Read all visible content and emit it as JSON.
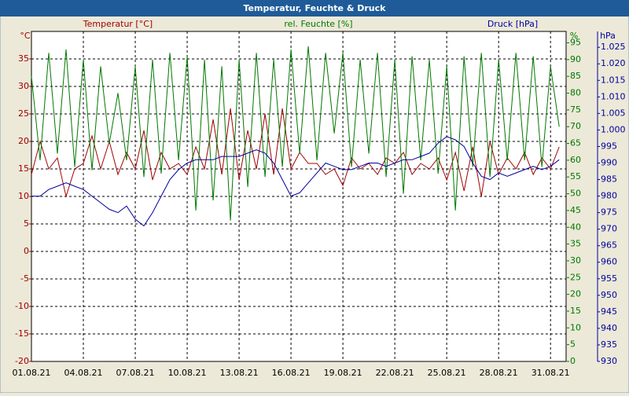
{
  "chart_data": {
    "type": "line",
    "title": "Temperatur, Feuchte & Druck",
    "ylabel": "°C",
    "y2label": "%",
    "y3label": "hPa",
    "xlim": [
      0,
      30.9
    ],
    "xticks": [
      {
        "value": 0,
        "label": "01.08.21"
      },
      {
        "value": 3,
        "label": "04.08.21"
      },
      {
        "value": 6,
        "label": "07.08.21"
      },
      {
        "value": 9,
        "label": "10.08.21"
      },
      {
        "value": 12,
        "label": "13.08.21"
      },
      {
        "value": 15,
        "label": "16.08.21"
      },
      {
        "value": 18,
        "label": "19.08.21"
      },
      {
        "value": 21,
        "label": "22.08.21"
      },
      {
        "value": 24,
        "label": "25.08.21"
      },
      {
        "value": 27,
        "label": "28.08.21"
      },
      {
        "value": 30,
        "label": "31.08.21"
      }
    ],
    "ylim": [
      -20,
      40
    ],
    "yticks": [
      -20,
      -15,
      -10,
      -5,
      0,
      5,
      10,
      15,
      20,
      25,
      30,
      35
    ],
    "y2lim": [
      0,
      98.4
    ],
    "y2ticks": [
      0,
      5,
      10,
      15,
      20,
      25,
      30,
      35,
      40,
      45,
      50,
      55,
      60,
      65,
      70,
      75,
      80,
      85,
      90,
      95
    ],
    "y3lim": [
      930,
      1029.8
    ],
    "y3ticks": [
      930,
      935,
      940,
      945,
      950,
      955,
      960,
      965,
      970,
      975,
      980,
      985,
      990,
      995,
      {
        "value": 1000,
        "label": "1.000"
      },
      {
        "value": 1005,
        "label": "1.005"
      },
      {
        "value": 1010,
        "label": "1.010"
      },
      {
        "value": 1015,
        "label": "1.015"
      },
      {
        "value": 1020,
        "label": "1.020"
      },
      {
        "value": 1025,
        "label": "1.025"
      }
    ],
    "grid": true,
    "x": [
      0,
      0.5,
      1,
      1.5,
      2,
      2.5,
      3,
      3.5,
      4,
      4.5,
      5,
      5.5,
      6,
      6.5,
      7,
      7.5,
      8,
      8.5,
      9,
      9.5,
      10,
      10.5,
      11,
      11.5,
      12,
      12.5,
      13,
      13.5,
      14,
      14.5,
      15,
      15.5,
      16,
      16.5,
      17,
      17.5,
      18,
      18.5,
      19,
      19.5,
      20,
      20.5,
      21,
      21.5,
      22,
      22.5,
      23,
      23.5,
      24,
      24.5,
      25,
      25.5,
      26,
      26.5,
      27,
      27.5,
      28,
      28.5,
      29,
      29.5,
      30,
      30.5
    ],
    "series": [
      {
        "name": "Temperatur [°C]",
        "color": "#a00000",
        "axis": "y",
        "values": [
          14,
          20,
          15,
          17,
          10,
          15,
          16,
          21,
          15,
          20,
          14,
          18,
          15,
          22,
          13,
          18,
          15,
          16,
          14,
          19,
          15,
          24,
          14,
          26,
          13,
          22,
          15,
          25,
          14,
          26,
          15,
          18,
          16,
          16,
          14,
          15,
          12,
          17,
          15,
          16,
          14,
          17,
          16,
          18,
          14,
          16,
          15,
          17,
          13,
          18,
          11,
          19,
          10,
          20,
          14,
          17,
          15,
          18,
          14,
          17,
          15,
          19
        ]
      },
      {
        "name": "rel. Feuchte [%]",
        "color": "#007800",
        "axis": "y2",
        "values": [
          85,
          60,
          92,
          62,
          93,
          58,
          90,
          57,
          88,
          65,
          80,
          60,
          88,
          55,
          90,
          56,
          92,
          60,
          91,
          45,
          90,
          48,
          88,
          42,
          90,
          52,
          92,
          55,
          90,
          58,
          93,
          62,
          94,
          60,
          92,
          68,
          92,
          58,
          90,
          62,
          92,
          55,
          90,
          50,
          91,
          60,
          90,
          56,
          88,
          45,
          91,
          58,
          92,
          55,
          90,
          60,
          92,
          60,
          91,
          58,
          88,
          70
        ]
      },
      {
        "name": "Druck [hPa]",
        "color": "#0000a0",
        "axis": "y3",
        "values": [
          980,
          980,
          982,
          983,
          984,
          983,
          982,
          980,
          978,
          976,
          975,
          977,
          973,
          971,
          975,
          980,
          985,
          988,
          990,
          991,
          991,
          991,
          992,
          992,
          992,
          993,
          994,
          993,
          990,
          985,
          980,
          981,
          984,
          987,
          990,
          989,
          988,
          988,
          989,
          990,
          990,
          989,
          990,
          991,
          991,
          992,
          993,
          996,
          998,
          997,
          995,
          990,
          986,
          985,
          987,
          986,
          987,
          988,
          989,
          988,
          989,
          991
        ]
      }
    ]
  }
}
